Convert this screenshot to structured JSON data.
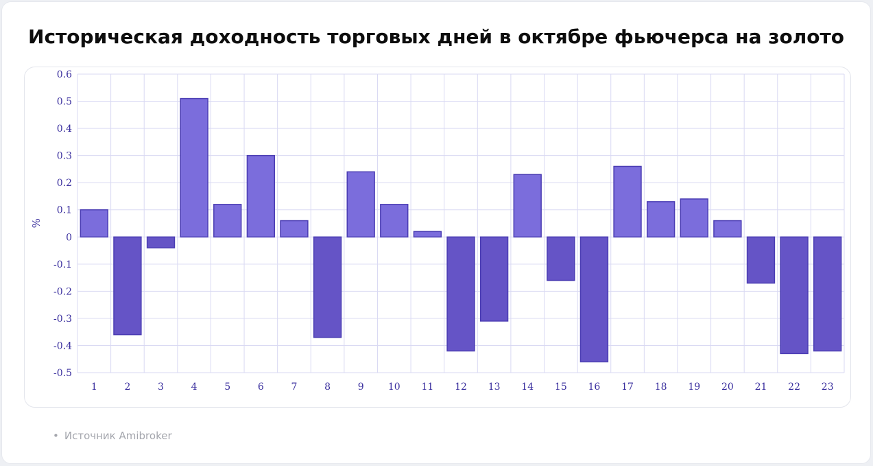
{
  "title": "Историческая доходность торговых дней в октябре фьючерса на золото",
  "source": "Источник Amibroker",
  "source_bullet": "•",
  "colors": {
    "positive": "#7b6ddc",
    "negative": "#6554c6",
    "bar_stroke": "#4a3cb3",
    "grid": "#d9d9f3",
    "tick": "#3a2f9e"
  },
  "chart_data": {
    "type": "bar",
    "title": "Историческая доходность торговых дней в октябре фьючерса на золото",
    "xlabel": "",
    "ylabel": "%",
    "ylim": [
      -0.5,
      0.6
    ],
    "yticks": [
      0.6,
      0.5,
      0.4,
      0.3,
      0.2,
      0.1,
      0,
      -0.1,
      -0.2,
      -0.3,
      -0.4,
      -0.5
    ],
    "grid": true,
    "categories": [
      "1",
      "2",
      "3",
      "4",
      "5",
      "6",
      "7",
      "8",
      "9",
      "10",
      "11",
      "12",
      "13",
      "14",
      "15",
      "16",
      "17",
      "18",
      "19",
      "20",
      "21",
      "22",
      "23"
    ],
    "values": [
      0.1,
      -0.36,
      -0.04,
      0.51,
      0.12,
      0.3,
      0.06,
      -0.37,
      0.24,
      0.12,
      0.02,
      -0.42,
      -0.31,
      0.23,
      -0.16,
      -0.46,
      0.26,
      0.13,
      0.14,
      0.06,
      -0.17,
      -0.43,
      -0.42
    ]
  }
}
